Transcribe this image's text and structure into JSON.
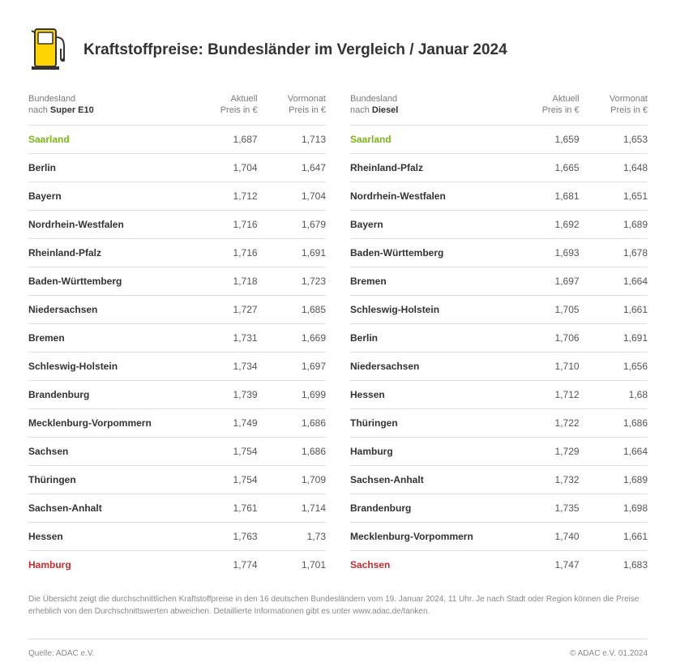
{
  "title": "Kraftstoffpreise: Bundesländer im Vergleich / Januar 2024",
  "icon_colors": {
    "fill": "#ffd400",
    "stroke": "#333333"
  },
  "headers": {
    "state_prefix": "Bundesland",
    "state_by": "nach ",
    "current_l1": "Aktuell",
    "current_l2": "Preis in  €",
    "prev_l1": "Vormonat",
    "prev_l2": "Preis in  €"
  },
  "left": {
    "fuel": "Super E10",
    "rows": [
      {
        "state": "Saarland",
        "cur": "1,687",
        "prev": "1,713",
        "flag": "best"
      },
      {
        "state": "Berlin",
        "cur": "1,704",
        "prev": "1,647"
      },
      {
        "state": "Bayern",
        "cur": "1,712",
        "prev": "1,704"
      },
      {
        "state": "Nordrhein-Westfalen",
        "cur": "1,716",
        "prev": "1,679"
      },
      {
        "state": "Rheinland-Pfalz",
        "cur": "1,716",
        "prev": "1,691"
      },
      {
        "state": "Baden-Württemberg",
        "cur": "1,718",
        "prev": "1,723"
      },
      {
        "state": "Niedersachsen",
        "cur": "1,727",
        "prev": "1,685"
      },
      {
        "state": "Bremen",
        "cur": "1,731",
        "prev": "1,669"
      },
      {
        "state": "Schleswig-Holstein",
        "cur": "1,734",
        "prev": "1,697"
      },
      {
        "state": "Brandenburg",
        "cur": "1,739",
        "prev": "1,699"
      },
      {
        "state": "Mecklenburg-Vorpommern",
        "cur": "1,749",
        "prev": "1,686"
      },
      {
        "state": "Sachsen",
        "cur": "1,754",
        "prev": "1,686"
      },
      {
        "state": "Thüringen",
        "cur": "1,754",
        "prev": "1,709"
      },
      {
        "state": "Sachsen-Anhalt",
        "cur": "1,761",
        "prev": "1,714"
      },
      {
        "state": "Hessen",
        "cur": "1,763",
        "prev": "1,73"
      },
      {
        "state": "Hamburg",
        "cur": "1,774",
        "prev": "1,701",
        "flag": "worst"
      }
    ]
  },
  "right": {
    "fuel": "Diesel",
    "rows": [
      {
        "state": "Saarland",
        "cur": "1,659",
        "prev": "1,653",
        "flag": "best"
      },
      {
        "state": "Rheinland-Pfalz",
        "cur": "1,665",
        "prev": "1,648"
      },
      {
        "state": "Nordrhein-Westfalen",
        "cur": "1,681",
        "prev": "1,651"
      },
      {
        "state": "Bayern",
        "cur": "1,692",
        "prev": "1,689"
      },
      {
        "state": "Baden-Württemberg",
        "cur": "1,693",
        "prev": "1,678"
      },
      {
        "state": "Bremen",
        "cur": "1,697",
        "prev": "1,664"
      },
      {
        "state": "Schleswig-Holstein",
        "cur": "1,705",
        "prev": "1,661"
      },
      {
        "state": "Berlin",
        "cur": "1,706",
        "prev": "1,691"
      },
      {
        "state": "Niedersachsen",
        "cur": "1,710",
        "prev": "1,656"
      },
      {
        "state": "Hessen",
        "cur": "1,712",
        "prev": "1,68"
      },
      {
        "state": "Thüringen",
        "cur": "1,722",
        "prev": "1,686"
      },
      {
        "state": "Hamburg",
        "cur": "1,729",
        "prev": "1,664"
      },
      {
        "state": "Sachsen-Anhalt",
        "cur": "1,732",
        "prev": "1,689"
      },
      {
        "state": "Brandenburg",
        "cur": "1,735",
        "prev": "1,698"
      },
      {
        "state": "Mecklenburg-Vorpommern",
        "cur": "1,740",
        "prev": "1,661"
      },
      {
        "state": "Sachsen",
        "cur": "1,747",
        "prev": "1,683",
        "flag": "worst"
      }
    ]
  },
  "footnote": "Die Übersicht zeigt die durchschnittlichen Kraftstoffpreise in den 16 deutschen Bundesländern vom 19. Januar 2024, 11 Uhr. Je nach Stadt oder Region können die Preise erheblich von den Durchschnittswerten abweichen. Detaillierte Informationen gibt es unter www.adac.de/tanken.",
  "source": "Quelle: ADAC e.V.",
  "copyright": "© ADAC e.V.  01.2024",
  "table_style": {
    "col_widths_pct": [
      54,
      23,
      23
    ],
    "row_border_color": "#e0e0e0",
    "header_text_color": "#7a7a7a",
    "body_text_color": "#333333",
    "num_text_color": "#555555",
    "best_color": "#7cb518",
    "worst_color": "#c62d2d",
    "font_size_body": 12,
    "font_size_header": 11
  }
}
